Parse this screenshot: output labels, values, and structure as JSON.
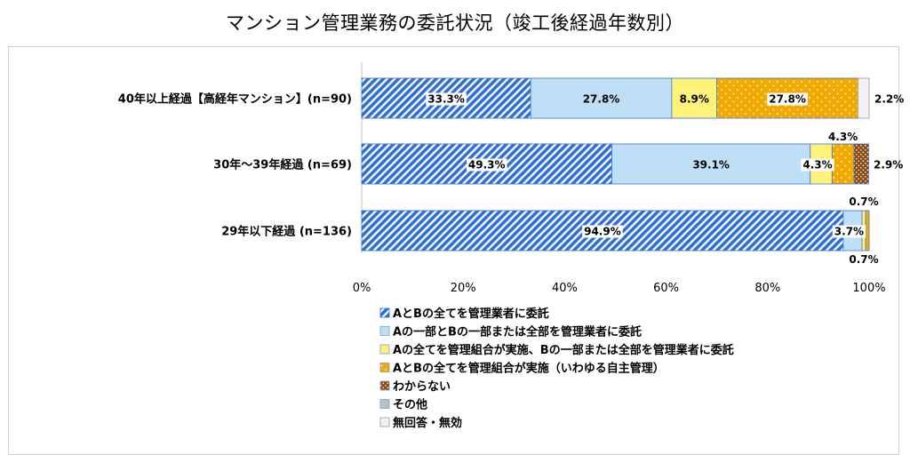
{
  "title": "マンション管理業務の委託状況（竣工後経過年数別）",
  "chart_data": {
    "type": "bar",
    "orientation": "horizontal",
    "stacked": "percent",
    "categories": [
      "40年以上経過【高経年マンション】(n=90)",
      "30年～39年経過 (n=69)",
      "29年以下経過 (n=136)"
    ],
    "xlim": [
      0,
      100
    ],
    "xticks": [
      "0%",
      "20%",
      "40%",
      "60%",
      "80%",
      "100%"
    ],
    "grid": false,
    "legend_position": "bottom",
    "series": [
      {
        "name": "AとBの全てを管理業者に委託",
        "color": "#2f6fd6",
        "pattern": "diag",
        "values": [
          33.3,
          49.3,
          94.9
        ],
        "labels": [
          "33.3%",
          "49.3%",
          "94.9%"
        ]
      },
      {
        "name": "Aの一部とBの一部または全部を管理業者に委託",
        "color": "#bfdff7",
        "pattern": "solid",
        "values": [
          27.8,
          39.1,
          3.7
        ],
        "labels": [
          "27.8%",
          "39.1%",
          "3.7%"
        ]
      },
      {
        "name": "Aの全てを管理組合が実施、Bの一部または全部を管理業者に委託",
        "color": "#fff27a",
        "pattern": "solid",
        "values": [
          8.9,
          4.3,
          0.7
        ],
        "labels": [
          "8.9%",
          "4.3%",
          "0.7%"
        ]
      },
      {
        "name": "AとBの全てを管理組合が実施（いわゆる自主管理）",
        "color": "#f2a900",
        "pattern": "dots",
        "values": [
          27.8,
          4.3,
          0.7
        ],
        "labels": [
          "27.8%",
          "4.3%",
          "0.7%"
        ]
      },
      {
        "name": "わからない",
        "color": "#8a4b12",
        "pattern": "dots",
        "values": [
          0,
          2.9,
          0
        ],
        "labels": [
          "",
          "2.9%",
          ""
        ]
      },
      {
        "name": "その他",
        "color": "#bfbfbf",
        "pattern": "solid",
        "values": [
          0,
          0,
          0
        ],
        "labels": [
          "",
          "",
          ""
        ]
      },
      {
        "name": "無回答・無効",
        "color": "#f2f2f2",
        "pattern": "solid",
        "values": [
          2.2,
          0,
          0
        ],
        "labels": [
          "2.2%",
          "",
          ""
        ]
      }
    ]
  }
}
